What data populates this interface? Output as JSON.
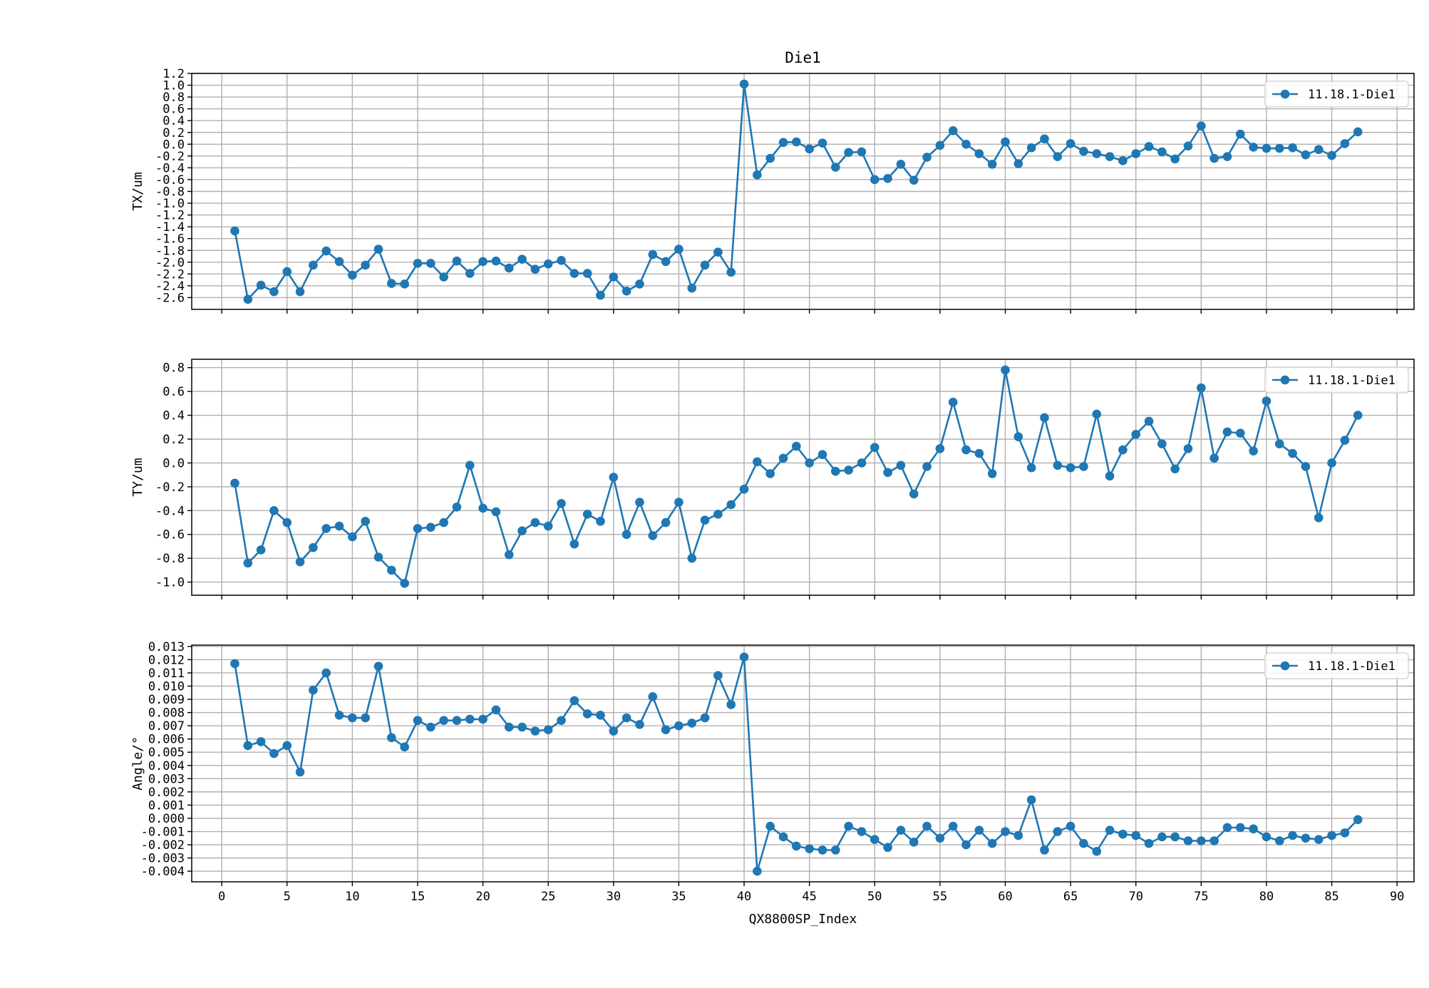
{
  "title": "Die1",
  "colors": {
    "series": "#1f77b4",
    "grid": "#b0b0b0",
    "axes": "#000000",
    "legend_border": "#cccccc"
  },
  "chart_data": [
    {
      "type": "line",
      "title": "Die1",
      "xlabel": "",
      "ylabel": "TX/um",
      "xlim": [
        -2.3,
        91.3
      ],
      "ylim": [
        -2.8,
        1.2
      ],
      "xticks": [
        0,
        5,
        10,
        15,
        20,
        25,
        30,
        35,
        40,
        45,
        50,
        55,
        60,
        65,
        70,
        75,
        80,
        85,
        90
      ],
      "xticks_labeled": false,
      "yticks": [
        -2.6,
        -2.4,
        -2.2,
        -2.0,
        -1.8,
        -1.6,
        -1.4,
        -1.2,
        -1.0,
        -0.8,
        -0.6,
        -0.4,
        -0.2,
        0.0,
        0.2,
        0.4,
        0.6,
        0.8,
        1.0,
        1.2
      ],
      "ytick_labels": [
        "-2.6",
        "-2.4",
        "-2.2",
        "-2.0",
        "-1.8",
        "-1.6",
        "-1.4",
        "-1.2",
        "-1.0",
        "-0.8",
        "-0.6",
        "-0.4",
        "-0.2",
        "0.0",
        "0.2",
        "0.4",
        "0.6",
        "0.8",
        "1.0",
        "1.2"
      ],
      "grid": true,
      "legend": "top-right",
      "series": [
        {
          "name": "11.18.1-Die1",
          "marker": "circle",
          "x": [
            1,
            2,
            3,
            4,
            5,
            6,
            7,
            8,
            9,
            10,
            11,
            12,
            13,
            14,
            15,
            16,
            17,
            18,
            19,
            20,
            21,
            22,
            23,
            24,
            25,
            26,
            27,
            28,
            29,
            30,
            31,
            32,
            33,
            34,
            35,
            36,
            37,
            38,
            39,
            40,
            41,
            42,
            43,
            44,
            45,
            46,
            47,
            48,
            49,
            50,
            51,
            52,
            53,
            54,
            55,
            56,
            57,
            58,
            59,
            60,
            61,
            62,
            63,
            64,
            65,
            66,
            67,
            68,
            69,
            70,
            71,
            72,
            73,
            74,
            75,
            76,
            77,
            78,
            79,
            80,
            81,
            82,
            83,
            84,
            85,
            86,
            87
          ],
          "values": [
            -1.47,
            -2.63,
            -2.39,
            -2.5,
            -2.16,
            -2.5,
            -2.05,
            -1.81,
            -1.99,
            -2.22,
            -2.05,
            -1.78,
            -2.36,
            -2.37,
            -2.02,
            -2.02,
            -2.25,
            -1.98,
            -2.19,
            -1.99,
            -1.98,
            -2.1,
            -1.95,
            -2.12,
            -2.03,
            -1.97,
            -2.19,
            -2.19,
            -2.56,
            -2.25,
            -2.49,
            -2.37,
            -1.87,
            -1.99,
            -1.78,
            -2.44,
            -2.05,
            -1.83,
            -2.17,
            1.02,
            -0.52,
            -0.24,
            0.03,
            0.04,
            -0.08,
            0.02,
            -0.39,
            -0.14,
            -0.13,
            -0.6,
            -0.58,
            -0.34,
            -0.61,
            -0.22,
            -0.02,
            0.23,
            0.0,
            -0.16,
            -0.34,
            0.04,
            -0.33,
            -0.06,
            0.09,
            -0.21,
            0.01,
            -0.12,
            -0.16,
            -0.21,
            -0.28,
            -0.16,
            -0.04,
            -0.13,
            -0.25,
            -0.03,
            0.31,
            -0.24,
            -0.21,
            0.17,
            -0.05,
            -0.07,
            -0.07,
            -0.06,
            -0.18,
            -0.09,
            -0.19,
            0.01,
            0.21
          ]
        }
      ]
    },
    {
      "type": "line",
      "title": "",
      "xlabel": "",
      "ylabel": "TY/um",
      "xlim": [
        -2.3,
        91.3
      ],
      "ylim": [
        -1.11,
        0.87
      ],
      "xticks": [
        0,
        5,
        10,
        15,
        20,
        25,
        30,
        35,
        40,
        45,
        50,
        55,
        60,
        65,
        70,
        75,
        80,
        85,
        90
      ],
      "xticks_labeled": false,
      "yticks": [
        -1.0,
        -0.8,
        -0.6,
        -0.4,
        -0.2,
        0.0,
        0.2,
        0.4,
        0.6,
        0.8
      ],
      "ytick_labels": [
        "-1.0",
        "-0.8",
        "-0.6",
        "-0.4",
        "-0.2",
        "0.0",
        "0.2",
        "0.4",
        "0.6",
        "0.8"
      ],
      "grid": true,
      "legend": "top-right",
      "series": [
        {
          "name": "11.18.1-Die1",
          "marker": "circle",
          "x": [
            1,
            2,
            3,
            4,
            5,
            6,
            7,
            8,
            9,
            10,
            11,
            12,
            13,
            14,
            15,
            16,
            17,
            18,
            19,
            20,
            21,
            22,
            23,
            24,
            25,
            26,
            27,
            28,
            29,
            30,
            31,
            32,
            33,
            34,
            35,
            36,
            37,
            38,
            39,
            40,
            41,
            42,
            43,
            44,
            45,
            46,
            47,
            48,
            49,
            50,
            51,
            52,
            53,
            54,
            55,
            56,
            57,
            58,
            59,
            60,
            61,
            62,
            63,
            64,
            65,
            66,
            67,
            68,
            69,
            70,
            71,
            72,
            73,
            74,
            75,
            76,
            77,
            78,
            79,
            80,
            81,
            82,
            83,
            84,
            85,
            86,
            87
          ],
          "values": [
            -0.17,
            -0.84,
            -0.73,
            -0.4,
            -0.5,
            -0.83,
            -0.71,
            -0.55,
            -0.53,
            -0.62,
            -0.49,
            -0.79,
            -0.9,
            -1.01,
            -0.55,
            -0.54,
            -0.5,
            -0.37,
            -0.02,
            -0.38,
            -0.41,
            -0.77,
            -0.57,
            -0.5,
            -0.53,
            -0.34,
            -0.68,
            -0.43,
            -0.49,
            -0.12,
            -0.6,
            -0.33,
            -0.61,
            -0.5,
            -0.33,
            -0.8,
            -0.48,
            -0.43,
            -0.35,
            -0.22,
            0.01,
            -0.09,
            0.04,
            0.14,
            0.0,
            0.07,
            -0.07,
            -0.06,
            0.0,
            0.13,
            -0.08,
            -0.02,
            -0.26,
            -0.03,
            0.12,
            0.51,
            0.11,
            0.08,
            -0.09,
            0.78,
            0.22,
            -0.04,
            0.38,
            -0.02,
            -0.04,
            -0.03,
            0.41,
            -0.11,
            0.11,
            0.24,
            0.35,
            0.16,
            -0.05,
            0.12,
            0.63,
            0.04,
            0.26,
            0.25,
            0.1,
            0.52,
            0.16,
            0.08,
            -0.03,
            -0.46,
            0.0,
            0.19,
            0.4
          ]
        }
      ]
    },
    {
      "type": "line",
      "title": "",
      "xlabel": "QX8800SP_Index",
      "ylabel": "Angle/°",
      "xlim": [
        -2.3,
        91.3
      ],
      "ylim": [
        -0.0048,
        0.0131
      ],
      "xticks": [
        0,
        5,
        10,
        15,
        20,
        25,
        30,
        35,
        40,
        45,
        50,
        55,
        60,
        65,
        70,
        75,
        80,
        85,
        90
      ],
      "xtick_labels": [
        "0",
        "5",
        "10",
        "15",
        "20",
        "25",
        "30",
        "35",
        "40",
        "45",
        "50",
        "55",
        "60",
        "65",
        "70",
        "75",
        "80",
        "85",
        "90"
      ],
      "xticks_labeled": true,
      "yticks": [
        -0.004,
        -0.003,
        -0.002,
        -0.001,
        0.0,
        0.001,
        0.002,
        0.003,
        0.004,
        0.005,
        0.006,
        0.007,
        0.008,
        0.009,
        0.01,
        0.011,
        0.012,
        0.013
      ],
      "ytick_labels": [
        "-0.004",
        "-0.003",
        "-0.002",
        "-0.001",
        "0.000",
        "0.001",
        "0.002",
        "0.003",
        "0.004",
        "0.005",
        "0.006",
        "0.007",
        "0.008",
        "0.009",
        "0.010",
        "0.011",
        "0.012",
        "0.013"
      ],
      "grid": true,
      "legend": "top-right",
      "series": [
        {
          "name": "11.18.1-Die1",
          "marker": "circle",
          "x": [
            1,
            2,
            3,
            4,
            5,
            6,
            7,
            8,
            9,
            10,
            11,
            12,
            13,
            14,
            15,
            16,
            17,
            18,
            19,
            20,
            21,
            22,
            23,
            24,
            25,
            26,
            27,
            28,
            29,
            30,
            31,
            32,
            33,
            34,
            35,
            36,
            37,
            38,
            39,
            40,
            41,
            42,
            43,
            44,
            45,
            46,
            47,
            48,
            49,
            50,
            51,
            52,
            53,
            54,
            55,
            56,
            57,
            58,
            59,
            60,
            61,
            62,
            63,
            64,
            65,
            66,
            67,
            68,
            69,
            70,
            71,
            72,
            73,
            74,
            75,
            76,
            77,
            78,
            79,
            80,
            81,
            82,
            83,
            84,
            85,
            86,
            87
          ],
          "values": [
            0.0117,
            0.0055,
            0.0058,
            0.0049,
            0.0055,
            0.0035,
            0.0097,
            0.011,
            0.0078,
            0.0076,
            0.0076,
            0.0115,
            0.0061,
            0.0054,
            0.0074,
            0.0069,
            0.0074,
            0.0074,
            0.0075,
            0.0075,
            0.0082,
            0.0069,
            0.0069,
            0.0066,
            0.0067,
            0.0074,
            0.0089,
            0.0079,
            0.0078,
            0.0066,
            0.0076,
            0.0071,
            0.0092,
            0.0067,
            0.007,
            0.0072,
            0.0076,
            0.0108,
            0.0086,
            0.0122,
            -0.004,
            -0.0006,
            -0.0014,
            -0.0021,
            -0.0023,
            -0.0024,
            -0.0024,
            -0.0006,
            -0.001,
            -0.0016,
            -0.0022,
            -0.0009,
            -0.0018,
            -0.0006,
            -0.0015,
            -0.0006,
            -0.002,
            -0.0009,
            -0.0019,
            -0.001,
            -0.0013,
            0.0014,
            -0.0024,
            -0.001,
            -0.0006,
            -0.0019,
            -0.0025,
            -0.0009,
            -0.0012,
            -0.0013,
            -0.0019,
            -0.0014,
            -0.0014,
            -0.0017,
            -0.0017,
            -0.0017,
            -0.0007,
            -0.0007,
            -0.0008,
            -0.0014,
            -0.0017,
            -0.0013,
            -0.0015,
            -0.0016,
            -0.0013,
            -0.0011,
            -0.0001
          ]
        }
      ]
    }
  ]
}
